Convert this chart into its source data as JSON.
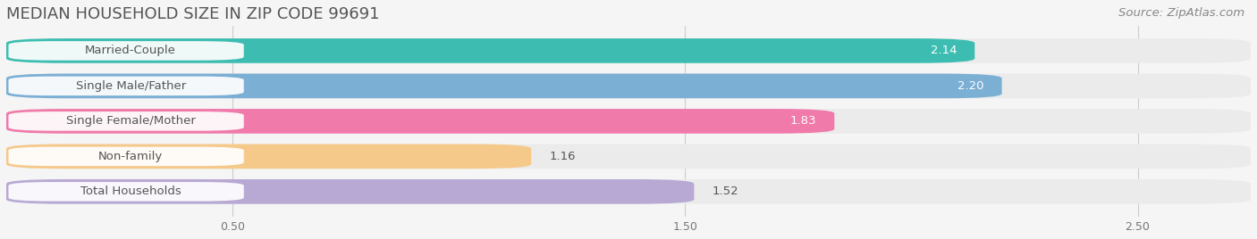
{
  "title": "MEDIAN HOUSEHOLD SIZE IN ZIP CODE 99691",
  "source": "Source: ZipAtlas.com",
  "categories": [
    "Married-Couple",
    "Single Male/Father",
    "Single Female/Mother",
    "Non-family",
    "Total Households"
  ],
  "values": [
    2.14,
    2.2,
    1.83,
    1.16,
    1.52
  ],
  "bar_colors": [
    "#3dbdb1",
    "#7bafd4",
    "#f07aaa",
    "#f5c98a",
    "#b8a9d4"
  ],
  "bar_bg_colors": [
    "#ebebeb",
    "#ebebeb",
    "#ebebeb",
    "#ebebeb",
    "#ebebeb"
  ],
  "label_colors": [
    "white",
    "white",
    "white",
    "#333333",
    "#333333"
  ],
  "value_colors": [
    "white",
    "white",
    "white",
    "#555555",
    "#555555"
  ],
  "xlim": [
    0,
    2.75
  ],
  "xticks": [
    0.5,
    1.5,
    2.5
  ],
  "title_fontsize": 13,
  "source_fontsize": 9.5,
  "label_fontsize": 9.5,
  "value_fontsize": 9.5,
  "bar_height": 0.7,
  "bar_gap": 0.3,
  "background_color": "#f5f5f5"
}
